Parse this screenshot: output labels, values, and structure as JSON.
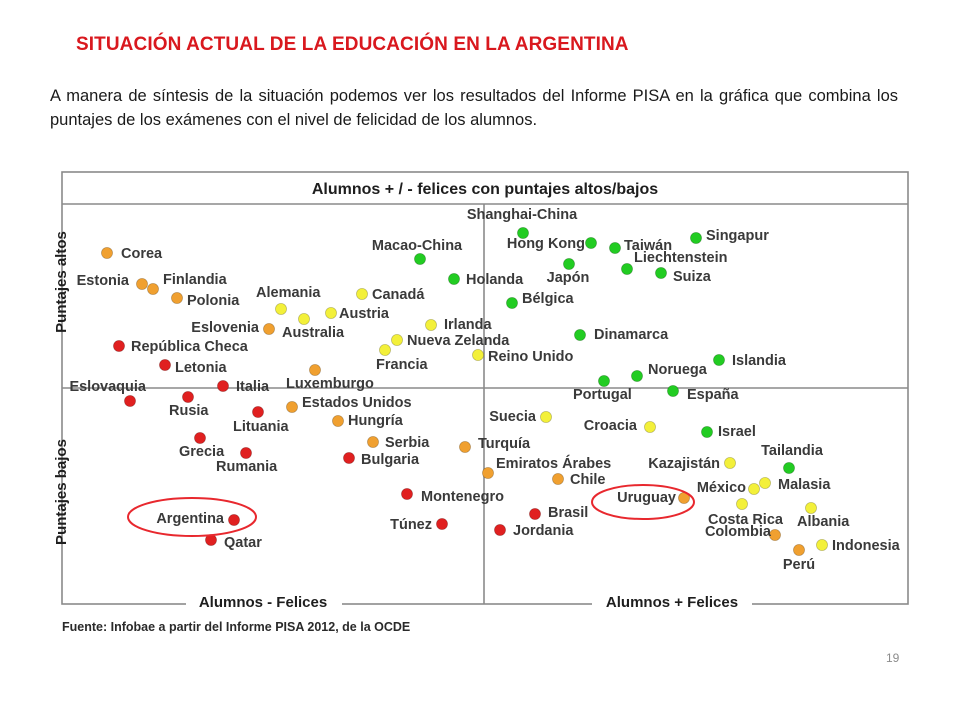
{
  "slide": {
    "title": "SITUACIÓN ACTUAL DE LA EDUCACIÓN EN LA ARGENTINA",
    "intro": "A manera de síntesis de la situación podemos ver los resultados del Informe PISA en la gráfica que combina los puntajes de los exámenes con el nivel de felicidad de los alumnos.",
    "page_number": "19"
  },
  "chart_data": {
    "type": "scatter",
    "title": "Alumnos + / - felices con puntajes altos/bajos",
    "quadrant_labels": {
      "y_top": "Puntajes altos",
      "y_bottom": "Puntajes bajos",
      "x_left": "Alumnos - Felices",
      "x_right": "Alumnos + Felices"
    },
    "source": "Fuente: Infobae a partir del Informe PISA 2012, de la OCDE",
    "grid": true,
    "axis_values_printed": false,
    "colors": {
      "red": "#e02020",
      "orange": "#f0a030",
      "yellow": "#f3f03a",
      "green": "#22cc22",
      "highlight_ring": "#e8282e"
    },
    "highlighted": [
      "Argentina",
      "Uruguay"
    ],
    "points": [
      {
        "name": "Shanghai-China",
        "color": "green"
      },
      {
        "name": "Hong Kong",
        "color": "green"
      },
      {
        "name": "Taiwán",
        "color": "green"
      },
      {
        "name": "Singapur",
        "color": "green"
      },
      {
        "name": "Macao-China",
        "color": "green"
      },
      {
        "name": "Liechtenstein",
        "color": "green"
      },
      {
        "name": "Japón",
        "color": "green"
      },
      {
        "name": "Suiza",
        "color": "green"
      },
      {
        "name": "Holanda",
        "color": "green"
      },
      {
        "name": "Bélgica",
        "color": "green"
      },
      {
        "name": "Corea",
        "color": "orange"
      },
      {
        "name": "Estonia",
        "color": "orange"
      },
      {
        "name": "Finlandia",
        "color": "orange"
      },
      {
        "name": "Polonia",
        "color": "orange"
      },
      {
        "name": "Alemania",
        "color": "yellow"
      },
      {
        "name": "Canadá",
        "color": "yellow"
      },
      {
        "name": "Austria",
        "color": "yellow"
      },
      {
        "name": "Eslovenia",
        "color": "orange"
      },
      {
        "name": "Australia",
        "color": "yellow"
      },
      {
        "name": "Irlanda",
        "color": "yellow"
      },
      {
        "name": "Nueva Zelanda",
        "color": "yellow"
      },
      {
        "name": "Dinamarca",
        "color": "green"
      },
      {
        "name": "República Checa",
        "color": "red"
      },
      {
        "name": "Francia",
        "color": "yellow"
      },
      {
        "name": "Reino Unido",
        "color": "yellow"
      },
      {
        "name": "Islandia",
        "color": "green"
      },
      {
        "name": "Letonia",
        "color": "red"
      },
      {
        "name": "Noruega",
        "color": "green"
      },
      {
        "name": "Eslovaquia",
        "color": "red"
      },
      {
        "name": "Italia",
        "color": "red"
      },
      {
        "name": "Luxemburgo",
        "color": "orange"
      },
      {
        "name": "Portugal",
        "color": "green"
      },
      {
        "name": "España",
        "color": "green"
      },
      {
        "name": "Rusia",
        "color": "red"
      },
      {
        "name": "Estados Unidos",
        "color": "orange"
      },
      {
        "name": "Lituania",
        "color": "red"
      },
      {
        "name": "Suecia",
        "color": "yellow"
      },
      {
        "name": "Hungría",
        "color": "orange"
      },
      {
        "name": "Croacia",
        "color": "yellow"
      },
      {
        "name": "Israel",
        "color": "green"
      },
      {
        "name": "Grecia",
        "color": "red"
      },
      {
        "name": "Serbia",
        "color": "orange"
      },
      {
        "name": "Turquía",
        "color": "orange"
      },
      {
        "name": "Tailandia",
        "color": "green"
      },
      {
        "name": "Rumania",
        "color": "red"
      },
      {
        "name": "Bulgaria",
        "color": "red"
      },
      {
        "name": "Emiratos Árabes",
        "color": "orange"
      },
      {
        "name": "Kazajistán",
        "color": "yellow"
      },
      {
        "name": "Chile",
        "color": "orange"
      },
      {
        "name": "México",
        "color": "yellow"
      },
      {
        "name": "Malasia",
        "color": "yellow"
      },
      {
        "name": "Montenegro",
        "color": "red"
      },
      {
        "name": "Uruguay",
        "color": "orange"
      },
      {
        "name": "Brasil",
        "color": "red"
      },
      {
        "name": "Argentina",
        "color": "red"
      },
      {
        "name": "Costa Rica",
        "color": "yellow"
      },
      {
        "name": "Albania",
        "color": "yellow"
      },
      {
        "name": "Túnez",
        "color": "red"
      },
      {
        "name": "Jordania",
        "color": "red"
      },
      {
        "name": "Colombia",
        "color": "orange"
      },
      {
        "name": "Indonesia",
        "color": "yellow"
      },
      {
        "name": "Qatar",
        "color": "red"
      },
      {
        "name": "Perú",
        "color": "orange"
      }
    ]
  }
}
